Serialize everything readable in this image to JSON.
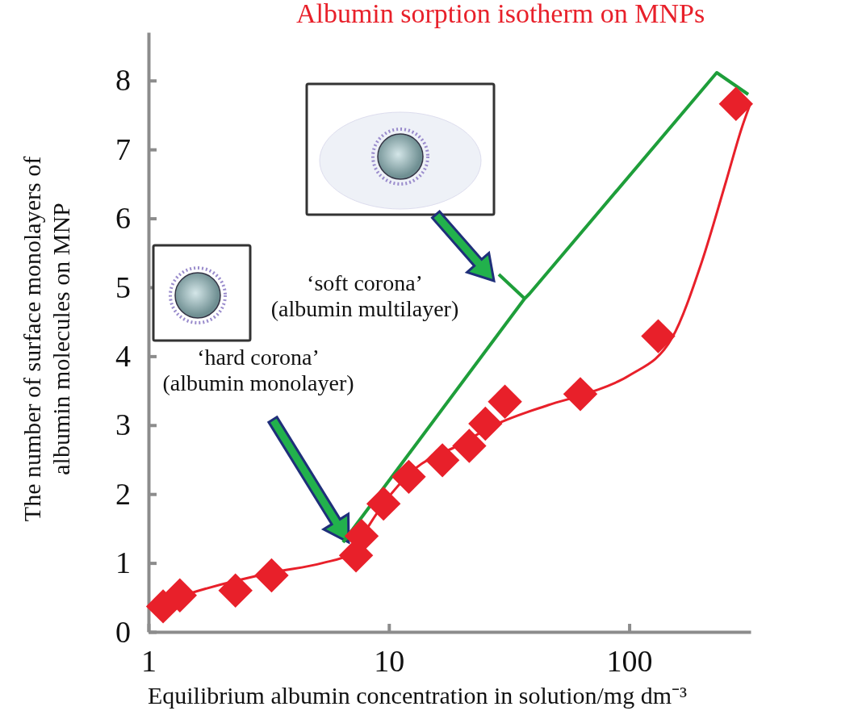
{
  "chart_data": {
    "type": "scatter",
    "title": "Albumin sorption isotherm on MNPs",
    "xlabel": "Equilibrium albumin concentration in solution/mg dm⁻³",
    "ylabel": "The number of surface monolayers of albumin molecules on MNP",
    "log": "x",
    "xlim": [
      1,
      320
    ],
    "xticks": [
      1,
      10,
      100
    ],
    "ylim": [
      0,
      8.7
    ],
    "yticks": [
      0,
      1,
      2,
      3,
      4,
      5,
      6,
      7,
      8
    ],
    "grid": false,
    "annotations": [
      "‘soft corona’\n(albumin multilayer)",
      "‘hard corona’\n(albumin monolayer)"
    ],
    "series": [
      {
        "type": "line",
        "color": "#e8202a",
        "marker": "none",
        "line_style": "solid",
        "x": [
          1.02,
          1.43,
          3.26,
          5.3,
          6.9,
          7.8,
          9.6,
          13.1,
          19.3,
          27.5,
          46,
          69.6,
          100,
          151,
          200,
          253,
          295,
          318
        ],
        "values": [
          0.36,
          0.54,
          0.86,
          1.0,
          1.13,
          1.41,
          1.88,
          2.39,
          2.7,
          3.0,
          3.29,
          3.48,
          3.72,
          4.27,
          5.36,
          6.54,
          7.33,
          7.65
        ]
      },
      {
        "type": "scatter",
        "color": "#e8202a",
        "marker": "diamond",
        "x": [
          1.15,
          1.35,
          2.3,
          3.25,
          7.3,
          7.7,
          9.5,
          12.1,
          16.7,
          21.6,
          25.2,
          30.4,
          62.6,
          132,
          278
        ],
        "values": [
          0.37,
          0.53,
          0.6,
          0.82,
          1.11,
          1.39,
          1.86,
          2.25,
          2.49,
          2.7,
          3.02,
          3.34,
          3.45,
          4.29,
          7.66
        ]
      }
    ]
  }
}
